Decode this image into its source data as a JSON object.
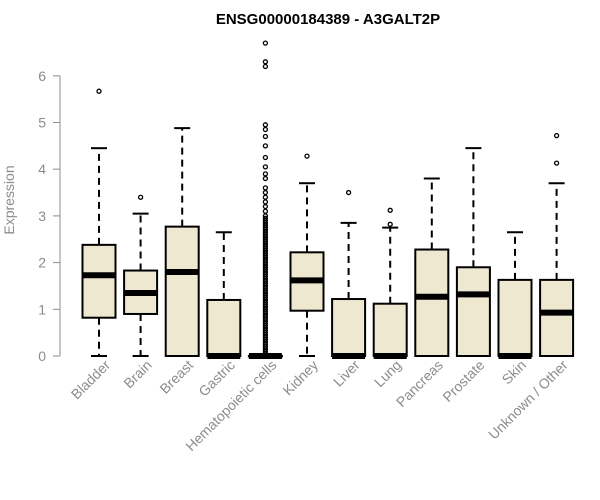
{
  "chart_data": {
    "type": "boxplot",
    "title": "ENSG00000184389 - A3GALT2P",
    "ylabel": "Expression",
    "xlabel": "",
    "ylim": [
      0,
      6.7
    ],
    "yticks": [
      0,
      1,
      2,
      3,
      4,
      5,
      6
    ],
    "box_fill": "#efe8d0",
    "categories": [
      "Bladder",
      "Brain",
      "Breast",
      "Gastric",
      "Hematopoietic cells",
      "Kidney",
      "Liver",
      "Lung",
      "Pancreas",
      "Prostate",
      "Skin",
      "Unknown / Other"
    ],
    "boxes": [
      {
        "whislo": 0.0,
        "q1": 0.82,
        "med": 1.73,
        "q3": 2.38,
        "whishi": 4.45,
        "fliers": [
          5.67
        ]
      },
      {
        "whislo": 0.0,
        "q1": 0.9,
        "med": 1.35,
        "q3": 1.83,
        "whishi": 3.05,
        "fliers": [
          3.4
        ]
      },
      {
        "whislo": 0.0,
        "q1": 0.0,
        "med": 1.8,
        "q3": 2.77,
        "whishi": 4.88,
        "fliers": []
      },
      {
        "whislo": 0.0,
        "q1": 0.0,
        "med": 0.0,
        "q3": 1.2,
        "whishi": 2.65,
        "fliers": []
      },
      {
        "whislo": 0.0,
        "q1": 0.0,
        "med": 0.0,
        "q3": 0.0,
        "whishi": 0.0,
        "fliers": [
          0.05,
          0.1,
          0.15,
          0.2,
          0.25,
          0.3,
          0.35,
          0.4,
          0.45,
          0.5,
          0.55,
          0.6,
          0.65,
          0.7,
          0.75,
          0.8,
          0.85,
          0.9,
          0.95,
          1.0,
          1.05,
          1.1,
          1.15,
          1.2,
          1.25,
          1.3,
          1.35,
          1.4,
          1.45,
          1.5,
          1.55,
          1.6,
          1.65,
          1.7,
          1.75,
          1.8,
          1.85,
          1.9,
          1.95,
          2.0,
          2.05,
          2.1,
          2.15,
          2.2,
          2.25,
          2.3,
          2.35,
          2.4,
          2.45,
          2.5,
          2.55,
          2.6,
          2.65,
          2.7,
          2.75,
          2.8,
          2.85,
          2.9,
          2.95,
          3.0,
          3.1,
          3.2,
          3.3,
          3.4,
          3.5,
          3.6,
          3.8,
          3.9,
          4.05,
          4.25,
          4.5,
          4.7,
          4.85,
          4.95,
          6.2,
          6.3,
          6.7
        ]
      },
      {
        "whislo": 0.0,
        "q1": 0.97,
        "med": 1.62,
        "q3": 2.22,
        "whishi": 3.7,
        "fliers": [
          4.28
        ]
      },
      {
        "whislo": 0.0,
        "q1": 0.0,
        "med": 0.0,
        "q3": 1.22,
        "whishi": 2.85,
        "fliers": [
          3.5
        ]
      },
      {
        "whislo": 0.0,
        "q1": 0.0,
        "med": 0.0,
        "q3": 1.12,
        "whishi": 2.75,
        "fliers": [
          2.82,
          3.12
        ]
      },
      {
        "whislo": 0.0,
        "q1": 0.0,
        "med": 1.27,
        "q3": 2.28,
        "whishi": 3.8,
        "fliers": []
      },
      {
        "whislo": 0.0,
        "q1": 0.0,
        "med": 1.32,
        "q3": 1.9,
        "whishi": 4.45,
        "fliers": []
      },
      {
        "whislo": 0.0,
        "q1": 0.0,
        "med": 0.0,
        "q3": 1.63,
        "whishi": 2.65,
        "fliers": []
      },
      {
        "whislo": 0.0,
        "q1": 0.0,
        "med": 0.93,
        "q3": 1.63,
        "whishi": 3.7,
        "fliers": [
          4.13,
          4.72
        ]
      }
    ]
  }
}
